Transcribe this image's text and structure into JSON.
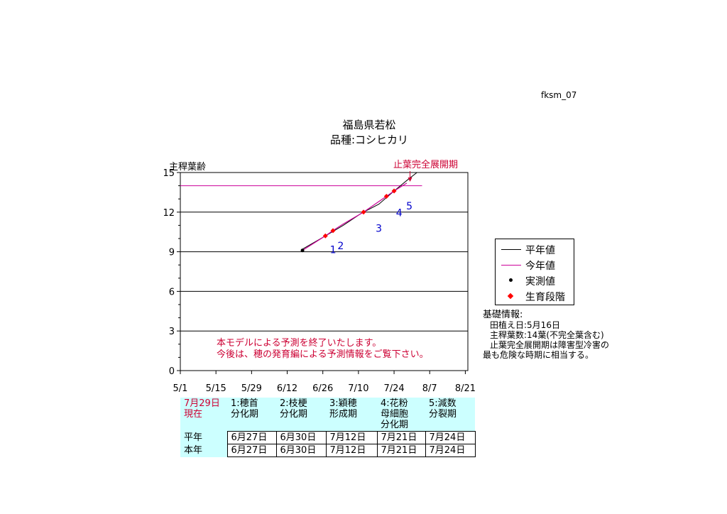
{
  "page_id": "fksm_07",
  "colors": {
    "normal_line": "#000000",
    "current_line": "#cc0099",
    "measured": "#000000",
    "stage": "#ff0000",
    "stage_label": "#0000cc",
    "annotation": "#cc0033",
    "table_fill": "#ccffff"
  },
  "chart_data": {
    "type": "line",
    "title": "福島県若松",
    "subtitle": "品種:コシヒカリ",
    "ylabel": "主稈葉齢",
    "ylim": [
      0,
      15
    ],
    "yticks": [
      0,
      3,
      6,
      9,
      12,
      15
    ],
    "xticks": [
      "5/1",
      "5/15",
      "5/29",
      "6/12",
      "6/26",
      "7/10",
      "7/24",
      "8/7",
      "8/21"
    ],
    "grid": true,
    "legend_position": "right",
    "series": [
      {
        "name": "平年値",
        "style": "line",
        "points": [
          [
            "6/18",
            9.2
          ],
          [
            "6/27",
            10.2
          ],
          [
            "7/4",
            11.0
          ],
          [
            "7/11",
            11.9
          ],
          [
            "7/18",
            12.6
          ],
          [
            "7/24",
            13.6
          ],
          [
            "7/29",
            14.4
          ],
          [
            "8/2",
            15.0
          ]
        ]
      },
      {
        "name": "今年値",
        "style": "line",
        "points": [
          [
            "6/18",
            9.1
          ],
          [
            "6/27",
            10.2
          ],
          [
            "6/30",
            10.6
          ],
          [
            "7/4",
            11.1
          ],
          [
            "7/12",
            12.0
          ],
          [
            "7/21",
            13.2
          ],
          [
            "7/24",
            13.6
          ],
          [
            "7/29",
            14.2
          ]
        ]
      },
      {
        "name": "実測値",
        "style": "marker",
        "points": [
          [
            "6/18",
            9.1
          ]
        ]
      },
      {
        "name": "生育段階",
        "style": "marker",
        "points": [
          [
            "6/27",
            10.2
          ],
          [
            "6/30",
            10.6
          ],
          [
            "7/12",
            12.0
          ],
          [
            "7/21",
            13.2
          ],
          [
            "7/24",
            13.6
          ]
        ]
      }
    ],
    "flag_leaf_level": 14.0,
    "flag_leaf_range": [
      "5/1",
      "8/4"
    ],
    "stage_labels": [
      {
        "text": "1",
        "x": "6/30",
        "y": 8.9
      },
      {
        "text": "2",
        "x": "7/3",
        "y": 9.2
      },
      {
        "text": "3",
        "x": "7/18",
        "y": 10.5
      },
      {
        "text": "4",
        "x": "7/26",
        "y": 11.7
      },
      {
        "text": "5",
        "x": "7/30",
        "y": 12.2
      }
    ],
    "flag_annotation": {
      "text": "止葉完全展開期",
      "x": "7/30",
      "y": 14.3
    },
    "notice": [
      "本モデルによる予測を終了いたします。",
      "今後は、穂の発育編による予測情報をご覧下さい。"
    ]
  },
  "legend": [
    {
      "label": "平年値",
      "kind": "line",
      "color": "#000000"
    },
    {
      "label": "今年値",
      "kind": "line",
      "color": "#cc0099"
    },
    {
      "label": "実測値",
      "kind": "dot",
      "color": "#000000"
    },
    {
      "label": "生育段階",
      "kind": "diamond",
      "color": "#ff0000"
    }
  ],
  "info": {
    "heading": "基礎情報:",
    "lines": [
      "田植え日:5月16日",
      "主稈葉数:14葉(不完全葉含む)",
      "止葉完全展開期は障害型冷害の",
      "最も危険な時期に相当する。"
    ]
  },
  "stages_table": {
    "corner": [
      "7月29日",
      "現在"
    ],
    "headers": [
      [
        "1:穂首",
        "分化期"
      ],
      [
        "2:枝梗",
        "分化期"
      ],
      [
        "3:穎穂",
        "形成期"
      ],
      [
        "4:花粉",
        "母細胞",
        "分化期"
      ],
      [
        "5:減数",
        "分裂期"
      ]
    ],
    "rows": [
      {
        "label": "平年",
        "values": [
          "6月27日",
          "6月30日",
          "7月12日",
          "7月21日",
          "7月24日"
        ]
      },
      {
        "label": "本年",
        "values": [
          "6月27日",
          "6月30日",
          "7月12日",
          "7月21日",
          "7月24日"
        ]
      }
    ]
  }
}
